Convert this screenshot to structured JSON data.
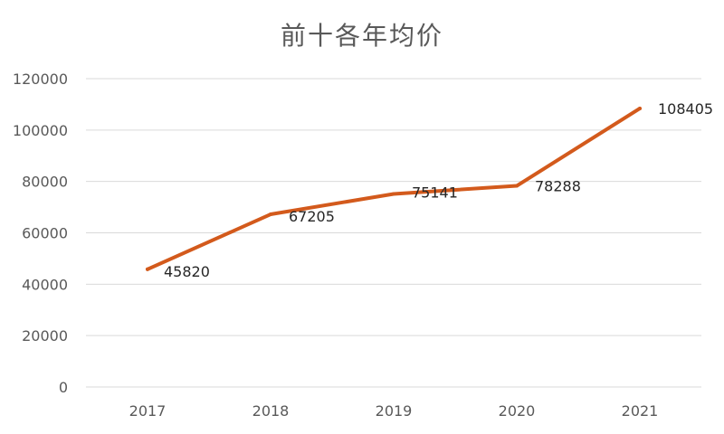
{
  "chart_data": {
    "type": "line",
    "title": "前十各年均价",
    "xlabel": "",
    "ylabel": "",
    "categories": [
      "2017",
      "2018",
      "2019",
      "2020",
      "2021"
    ],
    "series": [
      {
        "values": [
          45820,
          67205,
          75141,
          78288,
          108405
        ],
        "color": "#D35A1C"
      }
    ],
    "data_labels": [
      "45820",
      "67205",
      "75141",
      "78288",
      "108405"
    ],
    "ylim": [
      0,
      120000
    ],
    "yticks": [
      0,
      20000,
      40000,
      60000,
      80000,
      100000,
      120000
    ],
    "ytick_labels": [
      "0",
      "20000",
      "40000",
      "60000",
      "80000",
      "100000",
      "120000"
    ],
    "grid": true,
    "legend": "none"
  }
}
